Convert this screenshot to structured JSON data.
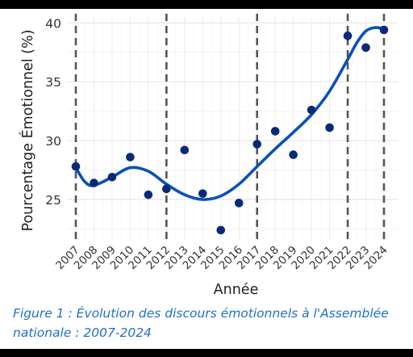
{
  "chart_data": {
    "type": "scatter",
    "title": "",
    "xlabel": "Année",
    "ylabel": "Pourcentage Émotionnel (%)",
    "x": [
      2007,
      2008,
      2009,
      2010,
      2011,
      2012,
      2013,
      2014,
      2015,
      2016,
      2017,
      2018,
      2019,
      2020,
      2021,
      2022,
      2023,
      2024
    ],
    "x_tick_labels": [
      "2007",
      "2008",
      "2009",
      "2010",
      "2011",
      "2012",
      "2013",
      "2014",
      "2015",
      "2016",
      "2017",
      "2018",
      "2019",
      "2020",
      "2021",
      "2022",
      "2023",
      "2024"
    ],
    "series": [
      {
        "values": [
          27.8,
          26.4,
          26.9,
          28.6,
          25.4,
          25.9,
          29.2,
          25.5,
          22.4,
          24.7,
          29.7,
          30.8,
          28.8,
          32.6,
          31.1,
          38.9,
          37.9,
          39.4
        ],
        "color": "#0a2a78"
      }
    ],
    "trend": {
      "x": [
        2007,
        2007.5,
        2008,
        2009,
        2010,
        2011,
        2012,
        2013,
        2014,
        2015,
        2016,
        2017,
        2018,
        2019,
        2020,
        2021,
        2022,
        2022.5,
        2023,
        2023.5,
        2024
      ],
      "y": [
        27.7,
        26.5,
        26.2,
        26.9,
        27.7,
        27.4,
        26.3,
        25.4,
        25.0,
        25.3,
        26.3,
        27.8,
        29.3,
        30.7,
        32.2,
        34.2,
        36.9,
        38.3,
        39.3,
        39.6,
        39.5
      ],
      "color": "#0b50b8"
    },
    "vlines": [
      2007,
      2012,
      2017,
      2022,
      2024
    ],
    "ylim": [
      21.5,
      40.5
    ],
    "y_ticks": [
      25,
      30,
      35,
      40
    ],
    "grid": true,
    "legend": "none"
  },
  "caption": {
    "line1": "Figure 1 : Évolution des discours émotionnels à l'Assemblée",
    "line2": "nationale : 2007-2024"
  }
}
